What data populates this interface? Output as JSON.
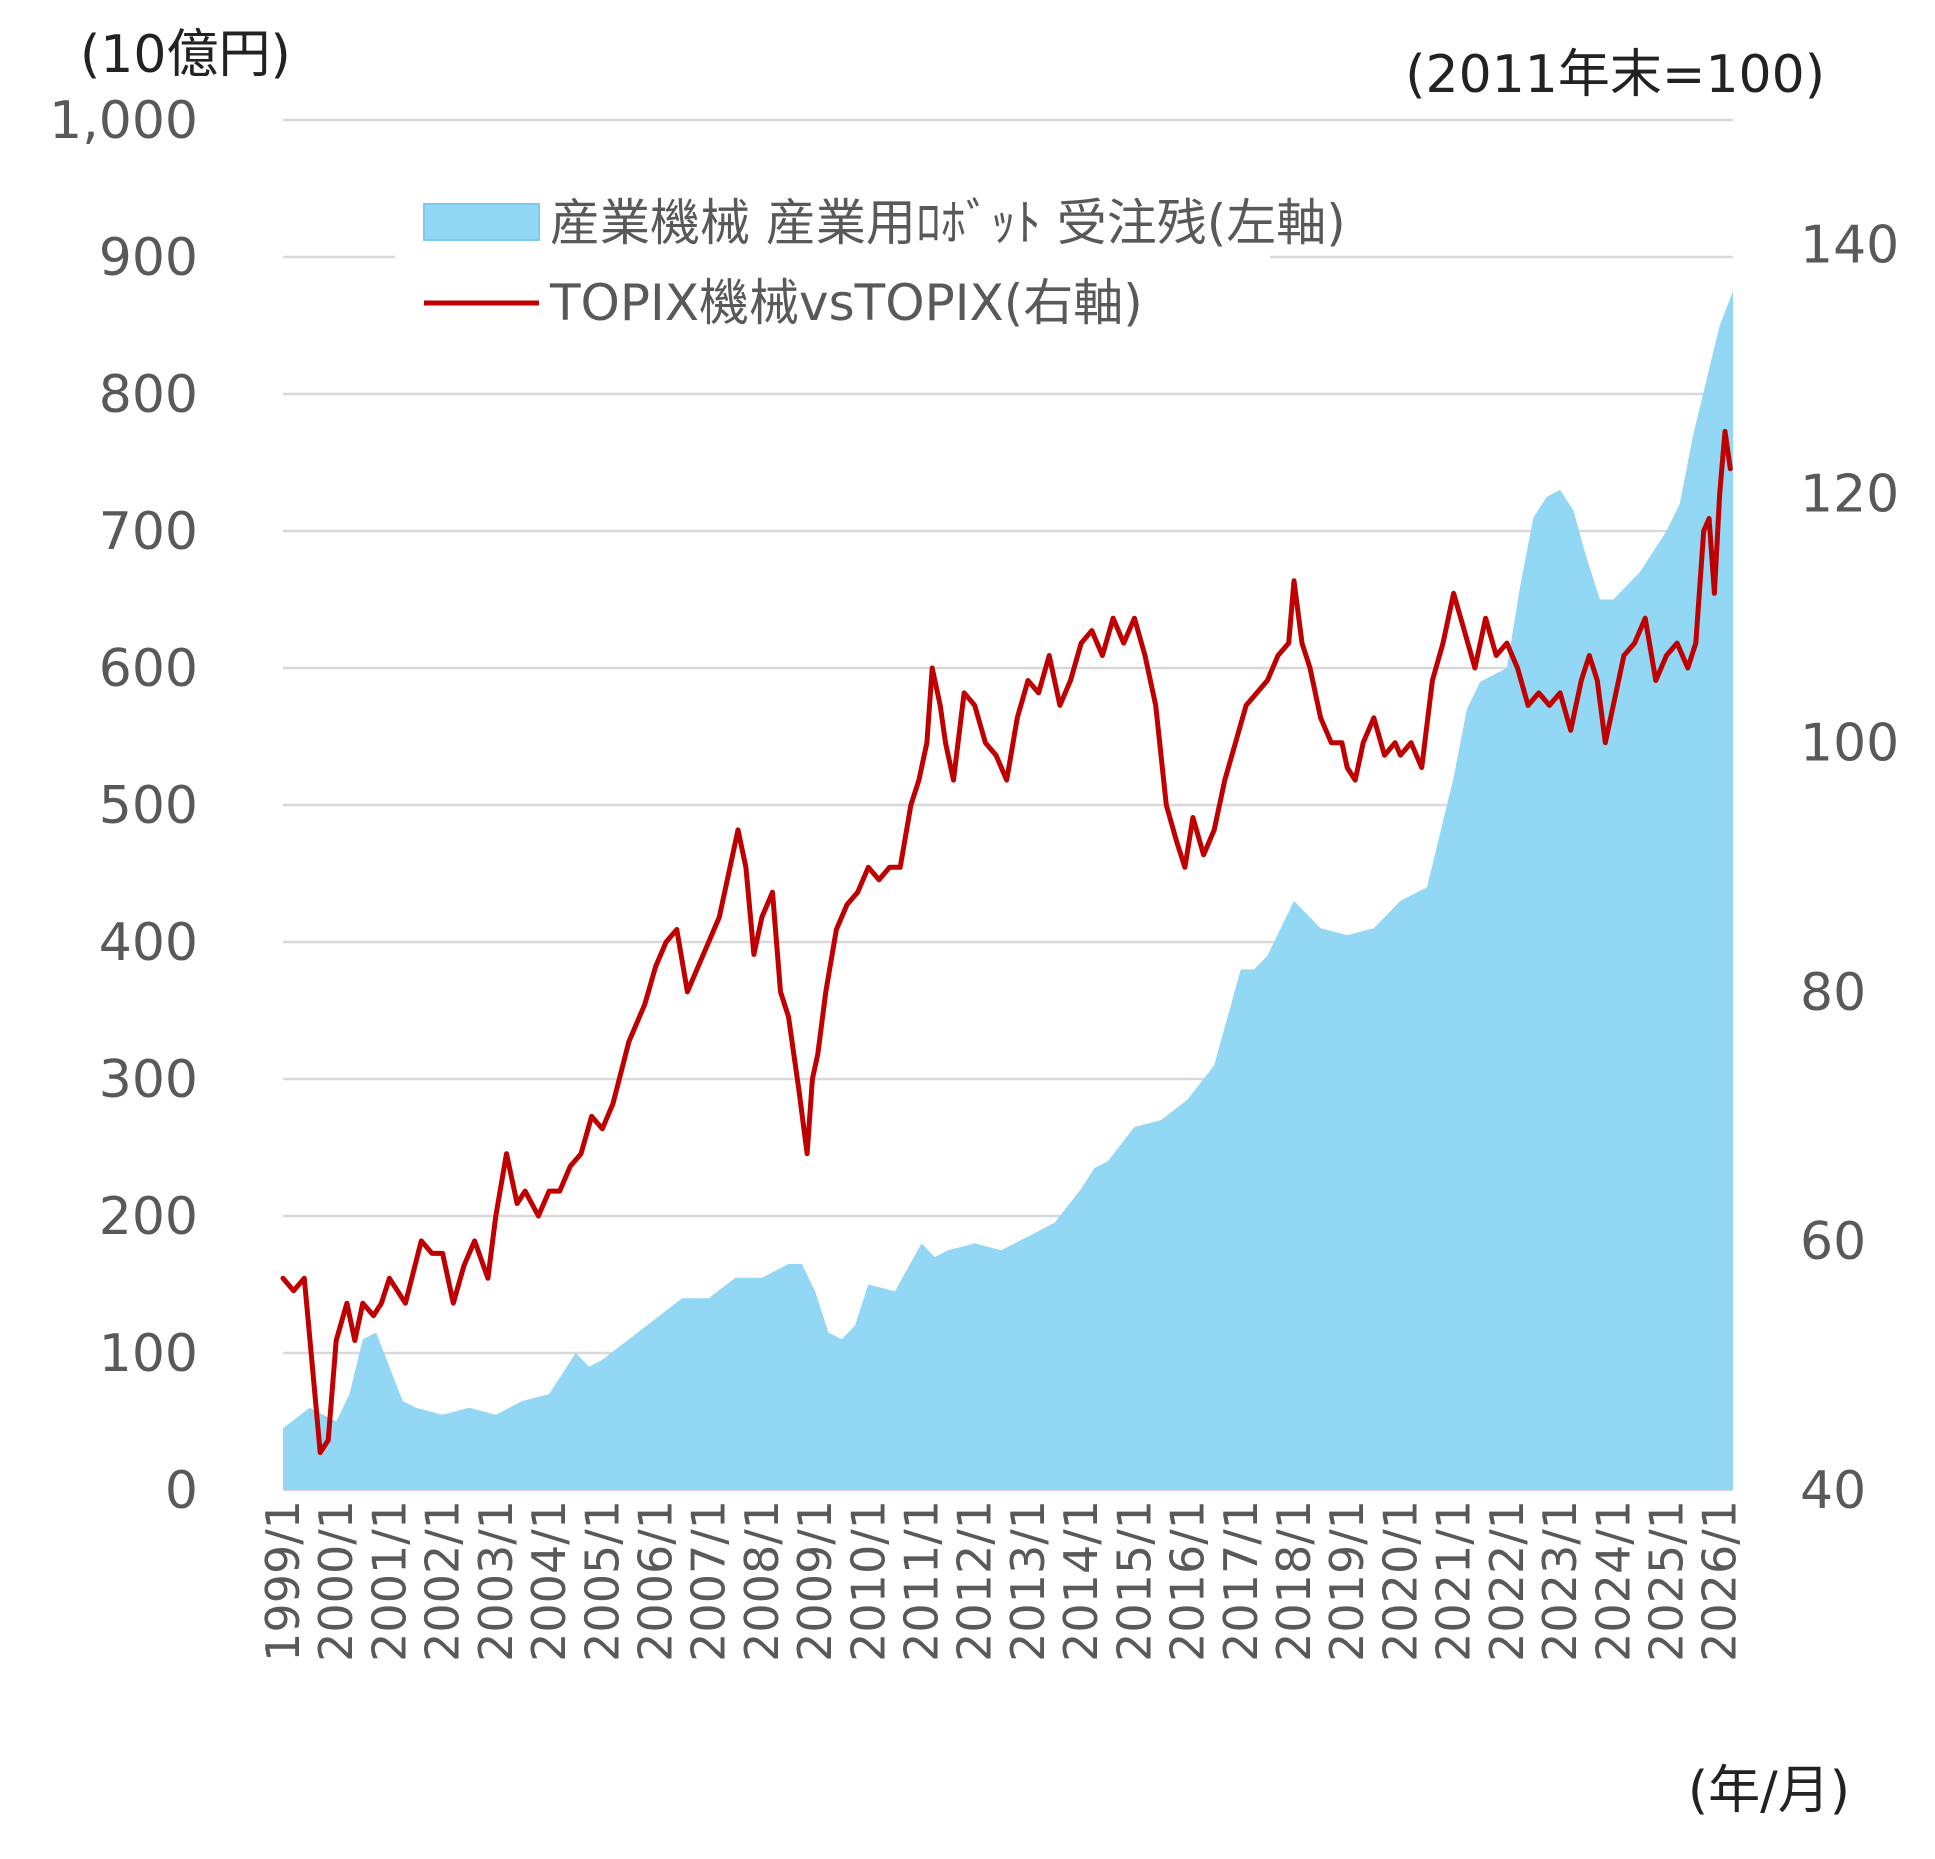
{
  "chart_data": {
    "type": "area+line",
    "left_axis_unit": "(10億円)",
    "right_axis_unit": "(2011年末=100)",
    "x_axis_unit": "(年/月)",
    "left_ticks": [
      "0",
      "100",
      "200",
      "300",
      "400",
      "500",
      "600",
      "700",
      "800",
      "900",
      "1,000"
    ],
    "right_ticks": [
      "40",
      "60",
      "80",
      "100",
      "120",
      "140"
    ],
    "ylim_left": [
      0,
      1000
    ],
    "ylim_right": [
      40,
      150
    ],
    "grid": true,
    "x_labels": [
      "1999/1",
      "2000/1",
      "2001/1",
      "2002/1",
      "2003/1",
      "2004/1",
      "2005/1",
      "2006/1",
      "2007/1",
      "2008/1",
      "2009/1",
      "2010/1",
      "2011/1",
      "2012/1",
      "2013/1",
      "2014/1",
      "2015/1",
      "2016/1",
      "2017/1",
      "2018/1",
      "2019/1",
      "2020/1",
      "2021/1",
      "2022/1",
      "2023/1",
      "2024/1",
      "2025/1",
      "2026/1"
    ],
    "colors": {
      "area": "#92d7f3",
      "line": "#c00000",
      "grid": "#d9d9d9"
    },
    "legend_position": "top-center",
    "series": [
      {
        "name": "産業機械 産業用ﾛﾎﾞｯﾄ 受注残(左軸)",
        "axis": "left",
        "type": "area",
        "x": [
          1999.0,
          1999.5,
          2000.0,
          2000.25,
          2000.5,
          2000.75,
          2001.0,
          2001.25,
          2001.5,
          2002.0,
          2002.5,
          2003.0,
          2003.5,
          2004.0,
          2004.5,
          2004.75,
          2005.0,
          2005.5,
          2006.0,
          2006.5,
          2007.0,
          2007.5,
          2008.0,
          2008.5,
          2008.75,
          2009.0,
          2009.25,
          2009.5,
          2009.75,
          2010.0,
          2010.5,
          2011.0,
          2011.25,
          2011.5,
          2012.0,
          2012.5,
          2013.0,
          2013.5,
          2014.0,
          2014.25,
          2014.5,
          2015.0,
          2015.5,
          2016.0,
          2016.5,
          2017.0,
          2017.25,
          2017.5,
          2018.0,
          2018.25,
          2018.5,
          2019.0,
          2019.5,
          2020.0,
          2020.5,
          2021.0,
          2021.25,
          2021.5,
          2022.0,
          2022.25,
          2022.5,
          2022.75,
          2023.0,
          2023.25,
          2023.5,
          2023.75,
          2024.0,
          2024.25,
          2024.5,
          2025.0,
          2025.25,
          2025.5,
          2025.75,
          2026.0,
          2026.25
        ],
        "values": [
          45,
          60,
          50,
          70,
          110,
          115,
          90,
          65,
          60,
          55,
          60,
          55,
          65,
          70,
          100,
          90,
          95,
          110,
          125,
          140,
          140,
          155,
          155,
          165,
          165,
          145,
          115,
          110,
          120,
          150,
          145,
          180,
          170,
          175,
          180,
          175,
          185,
          195,
          220,
          235,
          240,
          265,
          270,
          285,
          310,
          380,
          380,
          390,
          430,
          420,
          410,
          405,
          410,
          430,
          440,
          520,
          570,
          590,
          600,
          660,
          710,
          725,
          730,
          715,
          680,
          650,
          650,
          660,
          670,
          700,
          720,
          770,
          810,
          850,
          875
        ]
      },
      {
        "name": "TOPIX機械vsTOPIX(右軸)",
        "axis": "right",
        "type": "line",
        "x": [
          1999.0,
          1999.2,
          1999.4,
          1999.55,
          1999.7,
          1999.85,
          2000.0,
          2000.2,
          2000.35,
          2000.5,
          2000.7,
          2000.85,
          2001.0,
          2001.3,
          2001.6,
          2001.8,
          2002.0,
          2002.2,
          2002.4,
          2002.6,
          2002.85,
          2003.0,
          2003.2,
          2003.4,
          2003.55,
          2003.8,
          2004.0,
          2004.2,
          2004.4,
          2004.6,
          2004.8,
          2005.0,
          2005.2,
          2005.5,
          2005.8,
          2006.0,
          2006.2,
          2006.4,
          2006.6,
          2006.8,
          2007.0,
          2007.2,
          2007.4,
          2007.55,
          2007.7,
          2007.85,
          2008.0,
          2008.2,
          2008.35,
          2008.5,
          2008.7,
          2008.85,
          2008.95,
          2009.05,
          2009.2,
          2009.4,
          2009.6,
          2009.8,
          2010.0,
          2010.2,
          2010.4,
          2010.6,
          2010.8,
          2010.95,
          2011.1,
          2011.2,
          2011.35,
          2011.45,
          2011.6,
          2011.8,
          2012.0,
          2012.2,
          2012.4,
          2012.6,
          2012.8,
          2013.0,
          2013.2,
          2013.4,
          2013.6,
          2013.8,
          2014.0,
          2014.2,
          2014.4,
          2014.6,
          2014.8,
          2015.0,
          2015.2,
          2015.4,
          2015.6,
          2015.8,
          2015.95,
          2016.1,
          2016.3,
          2016.5,
          2016.7,
          2016.9,
          2017.1,
          2017.3,
          2017.5,
          2017.7,
          2017.9,
          2018.0,
          2018.15,
          2018.3,
          2018.5,
          2018.7,
          2018.9,
          2019.0,
          2019.15,
          2019.3,
          2019.5,
          2019.7,
          2019.9,
          2020.0,
          2020.2,
          2020.4,
          2020.6,
          2020.8,
          2021.0,
          2021.2,
          2021.4,
          2021.6,
          2021.8,
          2022.0,
          2022.2,
          2022.4,
          2022.6,
          2022.8,
          2023.0,
          2023.2,
          2023.4,
          2023.55,
          2023.7,
          2023.85,
          2024.0,
          2024.2,
          2024.4,
          2024.6,
          2024.8,
          2025.0,
          2025.2,
          2025.4,
          2025.55,
          2025.7,
          2025.8,
          2025.9,
          2026.0,
          2026.1,
          2026.2
        ],
        "values": [
          57,
          56,
          57,
          50,
          43,
          44,
          52,
          55,
          52,
          55,
          54,
          55,
          57,
          55,
          60,
          59,
          59,
          55,
          58,
          60,
          57,
          62,
          67,
          63,
          64,
          62,
          64,
          64,
          66,
          67,
          70,
          69,
          71,
          76,
          79,
          82,
          84,
          85,
          80,
          82,
          84,
          86,
          90,
          93,
          90,
          83,
          86,
          88,
          80,
          78,
          72,
          67,
          73,
          75,
          80,
          85,
          87,
          88,
          90,
          89,
          90,
          90,
          95,
          97,
          100,
          106,
          103,
          100,
          97,
          104,
          103,
          100,
          99,
          97,
          102,
          105,
          104,
          107,
          103,
          105,
          108,
          109,
          107,
          110,
          108,
          110,
          107,
          103,
          95,
          92,
          90,
          94,
          91,
          93,
          97,
          100,
          103,
          104,
          105,
          107,
          108,
          113,
          108,
          106,
          102,
          100,
          100,
          98,
          97,
          100,
          102,
          99,
          100,
          99,
          100,
          98,
          105,
          108,
          112,
          109,
          106,
          110,
          107,
          108,
          106,
          103,
          104,
          103,
          104,
          101,
          105,
          107,
          105,
          100,
          103,
          107,
          108,
          110,
          105,
          107,
          108,
          106,
          108,
          117,
          118,
          112,
          120,
          125,
          122
        ]
      }
    ]
  }
}
